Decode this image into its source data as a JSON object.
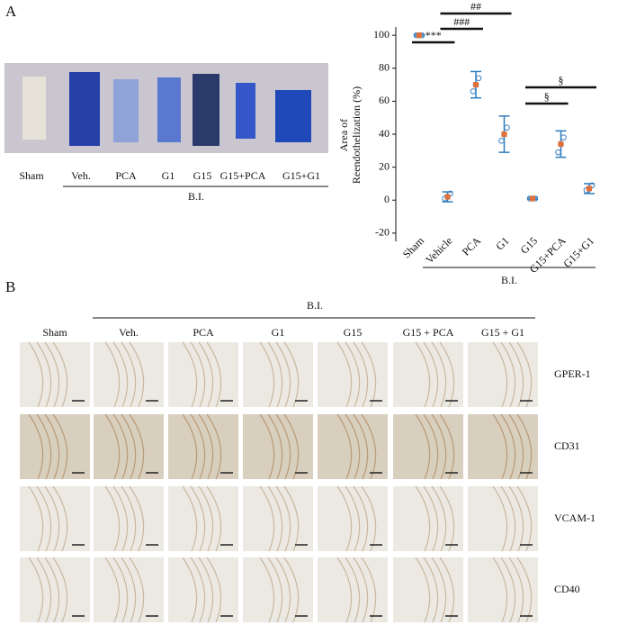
{
  "panel_a": {
    "label": "A",
    "strip_labels": [
      "Sham",
      "Veh.",
      "PCA",
      "G1",
      "G15",
      "G15+PCA",
      "G15+G1"
    ],
    "group_label": "B.I."
  },
  "chart_data": {
    "type": "dot",
    "ylabel_lines": [
      "Area of",
      "Reendothelization (%)"
    ],
    "categories": [
      "Sham",
      "Vehicle",
      "PCA",
      "G1",
      "G15",
      "G15+PCA",
      "G15+G1"
    ],
    "values": [
      100,
      2,
      70,
      40,
      1,
      34,
      7
    ],
    "errors": [
      0.5,
      3,
      8,
      11,
      0.5,
      8,
      3
    ],
    "points": [
      [
        100,
        100,
        100
      ],
      [
        1,
        2,
        4
      ],
      [
        66,
        70,
        74
      ],
      [
        36,
        40,
        44
      ],
      [
        1,
        1,
        1
      ],
      [
        29,
        34,
        38
      ],
      [
        6,
        7,
        9
      ]
    ],
    "group_label": "B.I.",
    "ylim": [
      -25,
      105
    ],
    "yticks": [
      -20,
      0,
      20,
      40,
      60,
      80,
      100
    ],
    "point_color": "#3a7fc0",
    "mean_color": "#e2703a",
    "error_color": "#2e7dbf",
    "annotations": [
      {
        "text": "***",
        "groups": [
          0,
          1
        ]
      },
      {
        "text": "###",
        "groups": [
          1,
          2
        ]
      },
      {
        "text": "##",
        "groups": [
          1,
          3
        ]
      },
      {
        "text": "§",
        "groups": [
          4,
          5
        ]
      },
      {
        "text": "§",
        "groups": [
          4,
          6
        ]
      }
    ]
  },
  "panel_b": {
    "label": "B",
    "group_label": "B.I.",
    "columns": [
      "Sham",
      "Veh.",
      "PCA",
      "G1",
      "G15",
      "G15 + PCA",
      "G15 + G1"
    ],
    "rows": [
      "GPER-1",
      "CD31",
      "VCAM-1",
      "CD40"
    ]
  }
}
